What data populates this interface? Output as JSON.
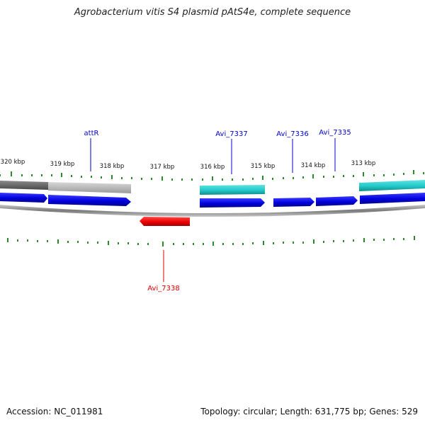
{
  "title": "Agrobacterium vitis S4 plasmid pAtS4e, complete sequence",
  "footer": {
    "accession": "Accession: NC_011981",
    "summary": "Topology: circular; Length: 631,775 bp; Genes: 529"
  },
  "colors": {
    "forward_gene": "#0000dd",
    "reverse_gene": "#ee0000",
    "feature_cyan": "#22c8c8",
    "feature_grey_dark": "#6a6a6a",
    "feature_grey_light": "#bdbdbd",
    "tick": "#2a8a2a",
    "backbone": "#8a8a8a",
    "label_blue": "#0000cc",
    "label_red": "#dd0000"
  },
  "scale": {
    "tick_labels": [
      "320 kbp",
      "319 kbp",
      "318 kbp",
      "317 kbp",
      "316 kbp",
      "315 kbp",
      "314 kbp",
      "313 kbp"
    ]
  },
  "features": {
    "top_labels": [
      {
        "text": "attR",
        "color": "blue"
      },
      {
        "text": "Avi_7337",
        "color": "blue"
      },
      {
        "text": "Avi_7336",
        "color": "blue"
      },
      {
        "text": "Avi_7335",
        "color": "blue"
      }
    ],
    "bottom_labels": [
      {
        "text": "Avi_7338",
        "color": "red"
      }
    ]
  }
}
